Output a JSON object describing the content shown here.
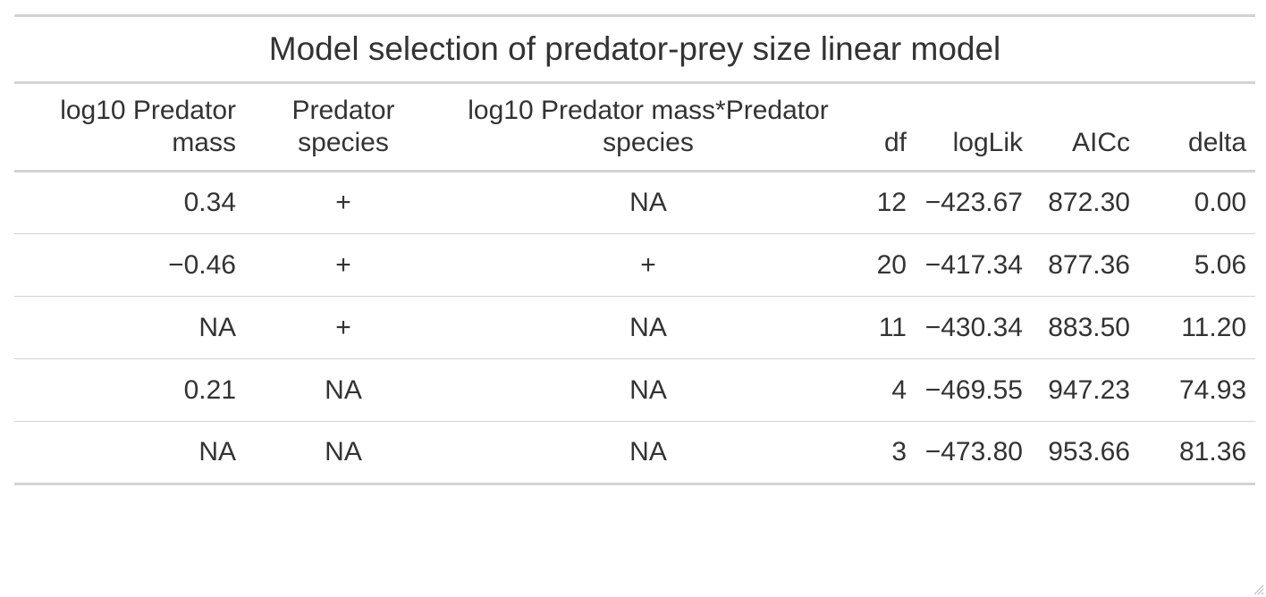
{
  "table": {
    "title": "Model selection of predator-prey size linear model",
    "columns": [
      {
        "label": "log10 Predator mass",
        "align": "right"
      },
      {
        "label": "Predator species",
        "align": "center"
      },
      {
        "label": "log10 Predator mass*Predator species",
        "align": "center"
      },
      {
        "label": "df",
        "align": "right"
      },
      {
        "label": "logLik",
        "align": "right"
      },
      {
        "label": "AICc",
        "align": "right"
      },
      {
        "label": "delta",
        "align": "right"
      }
    ],
    "rows": [
      [
        "0.34",
        "+",
        "NA",
        "12",
        "−423.67",
        "872.30",
        "0.00"
      ],
      [
        "−0.46",
        "+",
        "+",
        "20",
        "−417.34",
        "877.36",
        "5.06"
      ],
      [
        "NA",
        "+",
        "NA",
        "11",
        "−430.34",
        "883.50",
        "11.20"
      ],
      [
        "0.21",
        "NA",
        "NA",
        "4",
        "−469.55",
        "947.23",
        "74.93"
      ],
      [
        "NA",
        "NA",
        "NA",
        "3",
        "−473.80",
        "953.66",
        "81.36"
      ]
    ]
  },
  "colors": {
    "text": "#333333",
    "rule": "#d3d3d3",
    "background": "#ffffff"
  }
}
